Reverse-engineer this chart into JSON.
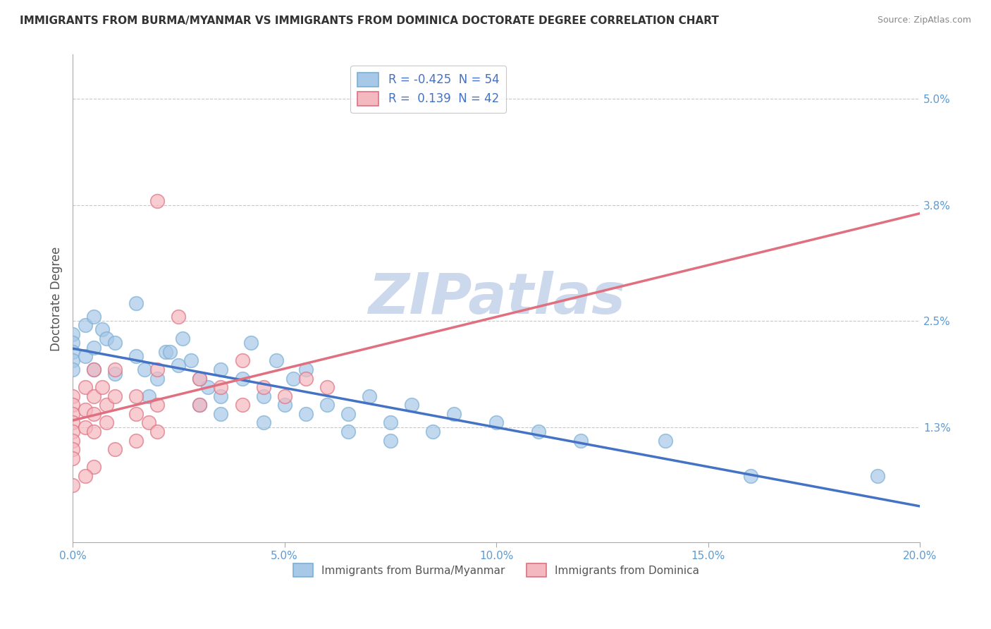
{
  "title": "IMMIGRANTS FROM BURMA/MYANMAR VS IMMIGRANTS FROM DOMINICA DOCTORATE DEGREE CORRELATION CHART",
  "source": "Source: ZipAtlas.com",
  "ylabel": "Doctorate Degree",
  "series": [
    {
      "name": "Immigrants from Burma/Myanmar",
      "R": -0.425,
      "N": 54,
      "color": "#a8c8e8",
      "edge_color": "#7aafd4",
      "line_color": "#4472c4",
      "line_style": "solid",
      "points": [
        [
          0.0,
          2.35
        ],
        [
          0.0,
          2.25
        ],
        [
          0.0,
          2.15
        ],
        [
          0.0,
          2.05
        ],
        [
          0.0,
          1.95
        ],
        [
          0.3,
          2.45
        ],
        [
          0.3,
          2.1
        ],
        [
          0.5,
          2.55
        ],
        [
          0.5,
          2.2
        ],
        [
          0.5,
          1.95
        ],
        [
          0.7,
          2.4
        ],
        [
          0.8,
          2.3
        ],
        [
          1.0,
          2.25
        ],
        [
          1.0,
          1.9
        ],
        [
          1.5,
          2.7
        ],
        [
          1.5,
          2.1
        ],
        [
          1.7,
          1.95
        ],
        [
          1.8,
          1.65
        ],
        [
          2.0,
          1.85
        ],
        [
          2.2,
          2.15
        ],
        [
          2.3,
          2.15
        ],
        [
          2.5,
          2.0
        ],
        [
          2.6,
          2.3
        ],
        [
          2.8,
          2.05
        ],
        [
          3.0,
          1.85
        ],
        [
          3.2,
          1.75
        ],
        [
          3.5,
          1.95
        ],
        [
          3.5,
          1.65
        ],
        [
          4.0,
          1.85
        ],
        [
          4.2,
          2.25
        ],
        [
          4.5,
          1.65
        ],
        [
          4.8,
          2.05
        ],
        [
          5.0,
          1.55
        ],
        [
          5.2,
          1.85
        ],
        [
          5.5,
          1.95
        ],
        [
          6.0,
          1.55
        ],
        [
          6.5,
          1.45
        ],
        [
          7.0,
          1.65
        ],
        [
          7.5,
          1.35
        ],
        [
          8.0,
          1.55
        ],
        [
          8.5,
          1.25
        ],
        [
          9.0,
          1.45
        ],
        [
          10.0,
          1.35
        ],
        [
          11.0,
          1.25
        ],
        [
          12.0,
          1.15
        ],
        [
          14.0,
          1.15
        ],
        [
          16.0,
          0.75
        ],
        [
          19.0,
          0.75
        ],
        [
          3.0,
          1.55
        ],
        [
          3.5,
          1.45
        ],
        [
          4.5,
          1.35
        ],
        [
          5.5,
          1.45
        ],
        [
          6.5,
          1.25
        ],
        [
          7.5,
          1.15
        ]
      ]
    },
    {
      "name": "Immigrants from Dominica",
      "R": 0.139,
      "N": 42,
      "color": "#f4b8c0",
      "edge_color": "#e07080",
      "line_color": "#e07080",
      "line_style": "solid",
      "dash_line_color": "#e8a0b0",
      "points": [
        [
          0.0,
          1.65
        ],
        [
          0.0,
          1.55
        ],
        [
          0.0,
          1.45
        ],
        [
          0.0,
          1.35
        ],
        [
          0.0,
          1.25
        ],
        [
          0.0,
          1.15
        ],
        [
          0.0,
          1.05
        ],
        [
          0.0,
          0.95
        ],
        [
          0.3,
          1.75
        ],
        [
          0.3,
          1.5
        ],
        [
          0.3,
          1.3
        ],
        [
          0.5,
          1.95
        ],
        [
          0.5,
          1.65
        ],
        [
          0.5,
          1.45
        ],
        [
          0.5,
          1.25
        ],
        [
          0.7,
          1.75
        ],
        [
          0.8,
          1.55
        ],
        [
          0.8,
          1.35
        ],
        [
          1.0,
          1.95
        ],
        [
          1.0,
          1.65
        ],
        [
          1.5,
          1.65
        ],
        [
          1.5,
          1.45
        ],
        [
          1.8,
          1.35
        ],
        [
          2.0,
          3.85
        ],
        [
          2.0,
          1.95
        ],
        [
          2.0,
          1.55
        ],
        [
          2.5,
          2.55
        ],
        [
          3.0,
          1.85
        ],
        [
          3.0,
          1.55
        ],
        [
          3.5,
          1.75
        ],
        [
          4.0,
          2.05
        ],
        [
          4.0,
          1.55
        ],
        [
          4.5,
          1.75
        ],
        [
          5.0,
          1.65
        ],
        [
          5.5,
          1.85
        ],
        [
          6.0,
          1.75
        ],
        [
          0.5,
          0.85
        ],
        [
          0.3,
          0.75
        ],
        [
          0.0,
          0.65
        ],
        [
          1.0,
          1.05
        ],
        [
          1.5,
          1.15
        ],
        [
          2.0,
          1.25
        ]
      ]
    }
  ],
  "xlim": [
    0.0,
    20.0
  ],
  "ylim": [
    0.0,
    5.5
  ],
  "yticks_right": [
    1.3,
    2.5,
    3.8,
    5.0
  ],
  "ytick_labels_right": [
    "1.3%",
    "2.5%",
    "3.8%",
    "5.0%"
  ],
  "xticks": [
    0.0,
    5.0,
    10.0,
    15.0,
    20.0
  ],
  "xtick_labels": [
    "0.0%",
    "5.0%",
    "10.0%",
    "15.0%",
    "20.0%"
  ],
  "grid_color": "#c8c8c8",
  "background_color": "#ffffff",
  "watermark_text": "ZIPatlas",
  "watermark_color": "#ccd8ec",
  "title_fontsize": 11,
  "tick_fontsize": 11,
  "legend_fontsize": 12
}
